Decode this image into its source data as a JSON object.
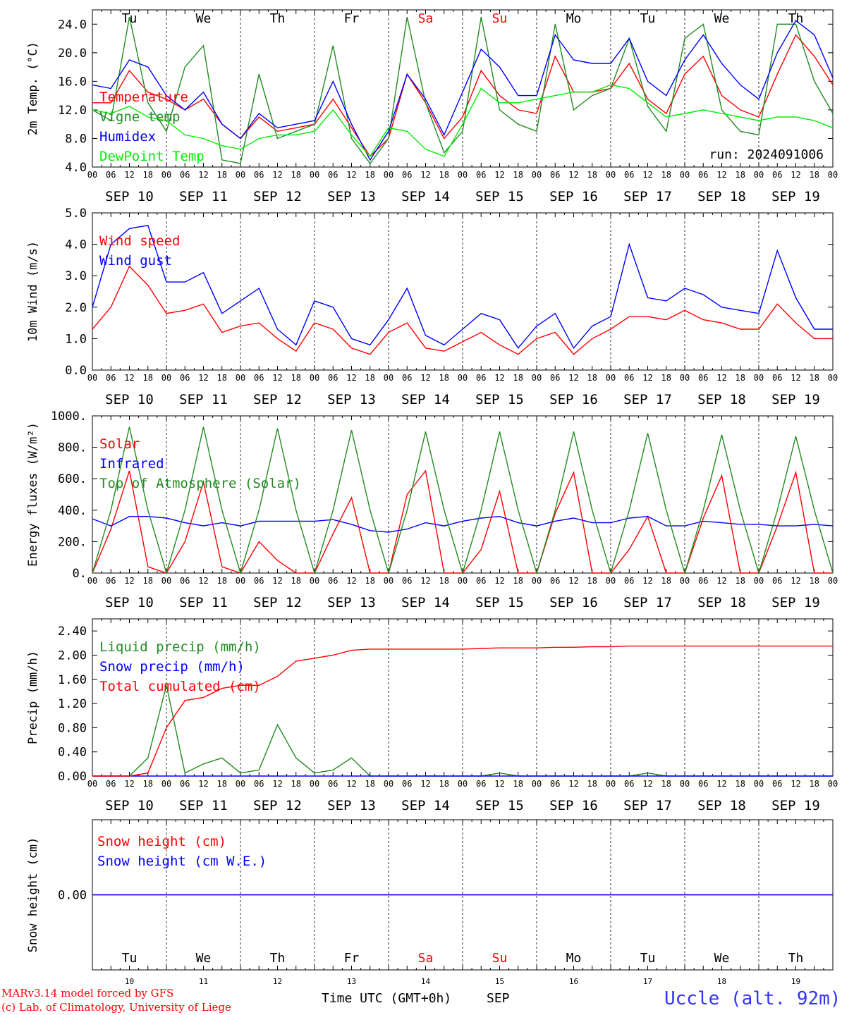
{
  "chart_data": [
    {
      "type": "line",
      "ylabel": "2m Temp. (°C)",
      "ylim": [
        4.0,
        26.0
      ],
      "yticks": [
        "4.0",
        "8.0",
        "12.0",
        "16.0",
        "20.0",
        "24.0"
      ],
      "run_label": "run: 2024091006",
      "legend_placement": "left",
      "x": [
        0,
        6,
        12,
        18,
        24,
        30,
        36,
        42,
        48,
        54,
        60,
        66,
        72,
        78,
        84,
        90,
        96,
        102,
        108,
        114,
        120,
        126,
        132,
        138,
        144,
        150,
        156,
        162,
        168,
        174,
        180,
        186,
        192,
        198,
        204,
        210,
        216,
        222,
        228,
        234,
        240
      ],
      "series": [
        {
          "name": "Temperature",
          "color": "#ff0000",
          "values": [
            13.0,
            13.0,
            17.5,
            14.5,
            13.5,
            12.0,
            13.5,
            10.0,
            8.0,
            11.0,
            9.0,
            9.5,
            10.0,
            13.5,
            9.5,
            5.5,
            8.0,
            17.0,
            13.0,
            8.0,
            11.0,
            17.5,
            14.0,
            12.0,
            11.5,
            19.5,
            14.5,
            14.5,
            15.0,
            18.5,
            13.5,
            11.5,
            17.0,
            19.5,
            14.0,
            12.0,
            11.0,
            17.0,
            22.5,
            19.5,
            15.5
          ]
        },
        {
          "name": "Vigne temp",
          "color": "#228b22",
          "values": [
            12.0,
            10.5,
            25.0,
            13.0,
            9.0,
            18.0,
            21.0,
            5.0,
            4.5,
            17.0,
            8.0,
            9.0,
            10.0,
            21.0,
            8.0,
            4.5,
            8.0,
            25.0,
            13.0,
            6.0,
            9.0,
            25.0,
            12.0,
            10.0,
            9.0,
            24.0,
            12.0,
            14.0,
            15.0,
            22.0,
            12.5,
            9.0,
            22.0,
            24.0,
            12.0,
            9.0,
            8.5,
            24.0,
            24.0,
            16.0,
            11.5
          ]
        },
        {
          "name": "Humidex",
          "color": "#0000ff",
          "values": [
            15.5,
            15.0,
            19.0,
            18.0,
            14.0,
            12.0,
            14.5,
            10.0,
            8.0,
            11.5,
            9.5,
            10.0,
            10.5,
            16.0,
            10.0,
            5.0,
            9.0,
            17.0,
            13.5,
            8.5,
            14.5,
            20.5,
            18.0,
            14.0,
            14.0,
            22.5,
            19.0,
            18.5,
            18.5,
            22.0,
            16.0,
            14.0,
            19.0,
            22.5,
            18.5,
            15.5,
            13.5,
            20.0,
            24.5,
            22.5,
            16.5
          ]
        },
        {
          "name": "DewPoint Temp",
          "color": "#00ee00",
          "values": [
            12.0,
            11.5,
            12.5,
            11.0,
            10.5,
            8.5,
            8.0,
            7.0,
            6.5,
            8.0,
            8.5,
            8.5,
            9.0,
            12.0,
            8.5,
            5.5,
            9.5,
            9.0,
            6.5,
            5.5,
            10.0,
            15.0,
            13.0,
            13.0,
            13.5,
            14.0,
            14.5,
            14.5,
            15.5,
            15.0,
            13.0,
            11.0,
            11.5,
            12.0,
            11.5,
            11.0,
            10.5,
            11.0,
            11.0,
            10.5,
            9.5
          ]
        }
      ]
    },
    {
      "type": "line",
      "ylabel": "10m Wind (m/s)",
      "ylim": [
        0.0,
        5.0
      ],
      "yticks": [
        "0.0",
        "1.0",
        "2.0",
        "3.0",
        "4.0",
        "5.0"
      ],
      "legend_placement": "left",
      "x": [
        0,
        6,
        12,
        18,
        24,
        30,
        36,
        42,
        48,
        54,
        60,
        66,
        72,
        78,
        84,
        90,
        96,
        102,
        108,
        114,
        120,
        126,
        132,
        138,
        144,
        150,
        156,
        162,
        168,
        174,
        180,
        186,
        192,
        198,
        204,
        210,
        216,
        222,
        228,
        234,
        240
      ],
      "series": [
        {
          "name": "Wind speed",
          "color": "#ff0000",
          "values": [
            1.3,
            2.0,
            3.3,
            2.7,
            1.8,
            1.9,
            2.1,
            1.2,
            1.4,
            1.5,
            1.0,
            0.6,
            1.5,
            1.3,
            0.7,
            0.5,
            1.2,
            1.5,
            0.7,
            0.6,
            0.9,
            1.2,
            0.8,
            0.5,
            1.0,
            1.2,
            0.5,
            1.0,
            1.3,
            1.7,
            1.7,
            1.6,
            1.9,
            1.6,
            1.5,
            1.3,
            1.3,
            2.1,
            1.5,
            1.0,
            1.0
          ]
        },
        {
          "name": "Wind gust",
          "color": "#0000ff",
          "values": [
            2.0,
            4.0,
            4.5,
            4.6,
            2.8,
            2.8,
            3.1,
            1.8,
            2.2,
            2.6,
            1.3,
            0.8,
            2.2,
            2.0,
            1.0,
            0.8,
            1.6,
            2.6,
            1.1,
            0.8,
            1.3,
            1.8,
            1.6,
            0.7,
            1.4,
            1.8,
            0.7,
            1.4,
            1.7,
            4.0,
            2.3,
            2.2,
            2.6,
            2.4,
            2.0,
            1.9,
            1.8,
            3.8,
            2.3,
            1.3,
            1.3
          ]
        }
      ]
    },
    {
      "type": "line",
      "ylabel": "Energy fluxes (W/m²)",
      "ylim": [
        0,
        1000
      ],
      "yticks": [
        "0.",
        "200.",
        "400.",
        "600.",
        "800.",
        "1000."
      ],
      "legend_placement": "left",
      "x": [
        0,
        6,
        12,
        18,
        24,
        30,
        36,
        42,
        48,
        54,
        60,
        66,
        72,
        78,
        84,
        90,
        96,
        102,
        108,
        114,
        120,
        126,
        132,
        138,
        144,
        150,
        156,
        162,
        168,
        174,
        180,
        186,
        192,
        198,
        204,
        210,
        216,
        222,
        228,
        234,
        240
      ],
      "series": [
        {
          "name": "Solar",
          "color": "#ff0000",
          "values": [
            0,
            280,
            650,
            40,
            0,
            200,
            580,
            40,
            0,
            200,
            80,
            0,
            0,
            250,
            480,
            0,
            0,
            500,
            650,
            0,
            0,
            150,
            520,
            0,
            0,
            380,
            640,
            0,
            0,
            150,
            360,
            0,
            0,
            350,
            620,
            0,
            0,
            300,
            640,
            0,
            0
          ]
        },
        {
          "name": "Infrared",
          "color": "#0000ff",
          "values": [
            345,
            300,
            360,
            360,
            350,
            320,
            300,
            320,
            300,
            330,
            330,
            330,
            330,
            340,
            310,
            270,
            260,
            280,
            320,
            300,
            330,
            350,
            360,
            320,
            300,
            330,
            350,
            320,
            320,
            350,
            360,
            300,
            300,
            330,
            320,
            310,
            310,
            300,
            300,
            310,
            300
          ]
        },
        {
          "name": "Top of Atmosphere (Solar)",
          "color": "#228b22",
          "values": [
            0,
            400,
            930,
            400,
            0,
            400,
            930,
            400,
            0,
            400,
            920,
            400,
            0,
            400,
            910,
            400,
            0,
            400,
            900,
            400,
            0,
            400,
            900,
            400,
            0,
            400,
            900,
            400,
            0,
            400,
            890,
            400,
            0,
            400,
            880,
            400,
            0,
            400,
            870,
            400,
            0
          ]
        }
      ]
    },
    {
      "type": "line",
      "ylabel": "Precip (mm/h)",
      "ylim": [
        0.0,
        2.6
      ],
      "yticks": [
        "0.00",
        "0.40",
        "0.80",
        "1.20",
        "1.60",
        "2.00",
        "2.40"
      ],
      "legend_placement": "left",
      "x": [
        0,
        6,
        12,
        18,
        24,
        30,
        36,
        42,
        48,
        54,
        60,
        66,
        72,
        78,
        84,
        90,
        96,
        102,
        108,
        114,
        120,
        126,
        132,
        138,
        144,
        150,
        156,
        162,
        168,
        174,
        180,
        186,
        192,
        198,
        204,
        210,
        216,
        222,
        228,
        234,
        240
      ],
      "series": [
        {
          "name": "Liquid precip (mm/h)",
          "color": "#228b22",
          "values": [
            0.0,
            0.0,
            0.0,
            0.3,
            1.5,
            0.05,
            0.2,
            0.3,
            0.05,
            0.1,
            0.85,
            0.3,
            0.05,
            0.1,
            0.3,
            0.0,
            0.0,
            0.0,
            0.0,
            0.0,
            0.0,
            0.0,
            0.05,
            0.0,
            0.0,
            0.0,
            0.0,
            0.0,
            0.0,
            0.0,
            0.05,
            0.0,
            0.0,
            0.0,
            0.0,
            0.0,
            0.0,
            0.0,
            0.0,
            0.0,
            0.0
          ]
        },
        {
          "name": "Snow precip (mm/h)",
          "color": "#0000ff",
          "values": [
            0,
            0,
            0,
            0,
            0,
            0,
            0,
            0,
            0,
            0,
            0,
            0,
            0,
            0,
            0,
            0,
            0,
            0,
            0,
            0,
            0,
            0,
            0,
            0,
            0,
            0,
            0,
            0,
            0,
            0,
            0,
            0,
            0,
            0,
            0,
            0,
            0,
            0,
            0,
            0,
            0
          ]
        },
        {
          "name": "Total cumulated (cm)",
          "color": "#ff0000",
          "values": [
            0.0,
            0.0,
            0.0,
            0.05,
            0.8,
            1.25,
            1.3,
            1.45,
            1.5,
            1.5,
            1.65,
            1.9,
            1.95,
            2.0,
            2.08,
            2.1,
            2.1,
            2.1,
            2.1,
            2.1,
            2.1,
            2.11,
            2.12,
            2.12,
            2.12,
            2.13,
            2.13,
            2.14,
            2.14,
            2.15,
            2.15,
            2.15,
            2.15,
            2.15,
            2.15,
            2.15,
            2.15,
            2.15,
            2.15,
            2.15,
            2.15
          ]
        }
      ]
    },
    {
      "type": "line",
      "ylabel": "Snow height (cm)",
      "ylim": [
        -1,
        1
      ],
      "yticks": [
        "0.00"
      ],
      "legend_placement": "left",
      "x": [
        0,
        240
      ],
      "series": [
        {
          "name": "Snow height (cm)",
          "color": "#ff0000",
          "values": [
            0.0,
            0.0
          ]
        },
        {
          "name": "Snow height (cm W.E.)",
          "color": "#0000ff",
          "values": [
            0.0,
            0.0
          ]
        }
      ]
    }
  ],
  "hour_labels": [
    "00",
    "06",
    "12",
    "18"
  ],
  "days": [
    {
      "abbr": "Tu",
      "date": "SEP 10",
      "num": "10",
      "color": "#000000"
    },
    {
      "abbr": "We",
      "date": "SEP 11",
      "num": "11",
      "color": "#000000"
    },
    {
      "abbr": "Th",
      "date": "SEP 12",
      "num": "12",
      "color": "#000000"
    },
    {
      "abbr": "Fr",
      "date": "SEP 13",
      "num": "13",
      "color": "#000000"
    },
    {
      "abbr": "Sa",
      "date": "SEP 14",
      "num": "14",
      "color": "#ff0000"
    },
    {
      "abbr": "Su",
      "date": "SEP 15",
      "num": "15",
      "color": "#ff0000"
    },
    {
      "abbr": "Mo",
      "date": "SEP 16",
      "num": "16",
      "color": "#000000"
    },
    {
      "abbr": "Tu",
      "date": "SEP 17",
      "num": "17",
      "color": "#000000"
    },
    {
      "abbr": "We",
      "date": "SEP 18",
      "num": "18",
      "color": "#000000"
    },
    {
      "abbr": "Th",
      "date": "SEP 19",
      "num": "19",
      "color": "#000000"
    }
  ],
  "footer": {
    "model": "MARv3.14 model forced by GFS",
    "credit": "(c) Lab. of Climatology, University of Liege",
    "xlabel": "Time UTC (GMT+0h)",
    "month": "SEP",
    "station": "Uccle (alt. 92m)",
    "model_color": "#ff0000",
    "station_color": "#3333ff"
  }
}
